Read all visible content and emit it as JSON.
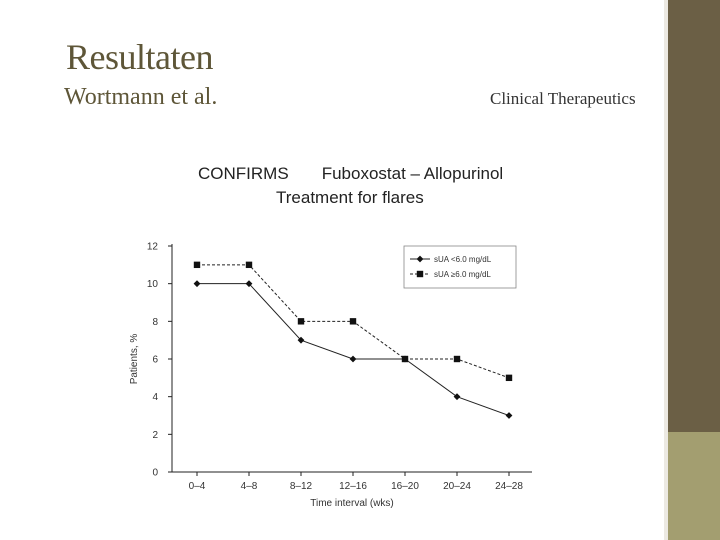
{
  "slide": {
    "title": "Resultaten",
    "authors": "Wortmann et al.",
    "journal": "Clinical Therapeutics",
    "heading_line1": "CONFIRMS       Fuboxostat – Allopurinol",
    "heading_line2": "Treatment for flares"
  },
  "colors": {
    "side_bar_dark": "#6b5f45",
    "side_bar_light": "#a39e70",
    "title_text": "#5e5638"
  },
  "chart_data": {
    "type": "line",
    "xlabel": "Time interval (wks)",
    "ylabel": "Patients, %",
    "categories": [
      "0–4",
      "4–8",
      "8–12",
      "12–16",
      "16–20",
      "20–24",
      "24–28"
    ],
    "ylim": [
      0,
      12
    ],
    "yticks": [
      "0",
      "2",
      "4",
      "6",
      "8",
      "10",
      "12"
    ],
    "legend_position": "top-right",
    "series": [
      {
        "name": "sUA <6.0 mg/dL",
        "marker": "diamond",
        "line": "solid",
        "values": [
          10,
          10,
          7,
          6,
          6,
          4,
          3
        ]
      },
      {
        "name": "sUA ≥6.0 mg/dL",
        "marker": "square",
        "line": "dashed",
        "values": [
          11,
          11,
          8,
          8,
          6,
          6,
          5
        ]
      }
    ]
  }
}
